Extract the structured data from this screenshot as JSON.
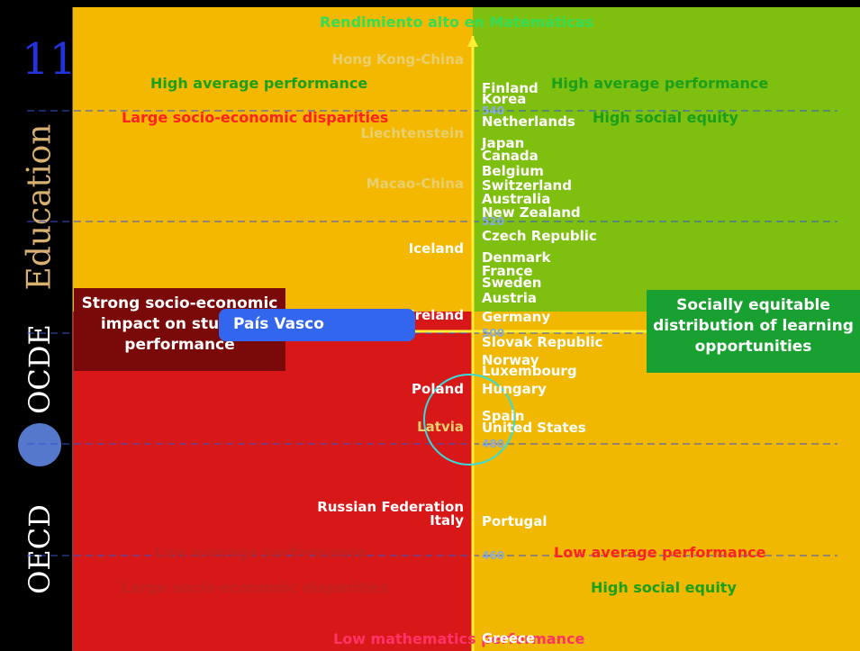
{
  "slide_number": "11",
  "sidebar": {
    "education": "Education",
    "ocde": "OCDE",
    "oecd": "OECD"
  },
  "top_label": "Rendimiento alto en Matemáticas",
  "bottom_label": "Low mathematics performance",
  "quadrants": {
    "top_left": [
      "High average performance",
      "Large socio-economic disparities"
    ],
    "top_right": [
      "High average performance",
      "High social equity"
    ],
    "bottom_left": [
      "Low average performance",
      "Large socio-economic disparities"
    ],
    "bottom_right": [
      "Low average performance",
      "High social equity"
    ]
  },
  "left_box": "Strong socio-economic impact on student performance",
  "right_box": "Socially equitable distribution of learning opportunities",
  "callout": "País Vasco",
  "axis_ticks": [
    "540",
    "520",
    "500",
    "480",
    "460"
  ],
  "left_countries": [
    "Hong Kong-China",
    "Liechtenstein",
    "Macao-China",
    "Iceland",
    "Ireland",
    "Poland",
    "Latvia",
    "Russian Federation",
    "Italy"
  ],
  "right_countries": [
    "Finland",
    "Korea",
    "Netherlands",
    "Japan",
    "Canada",
    "Belgium",
    "Switzerland",
    "Australia",
    "New Zealand",
    "Czech Republic",
    "Denmark",
    "France",
    "Sweden",
    "Austria",
    "Germany",
    "Slovak Republic",
    "Norway",
    "Luxembourg",
    "Hungary",
    "Spain",
    "United States",
    "Portugal",
    "Greece"
  ]
}
